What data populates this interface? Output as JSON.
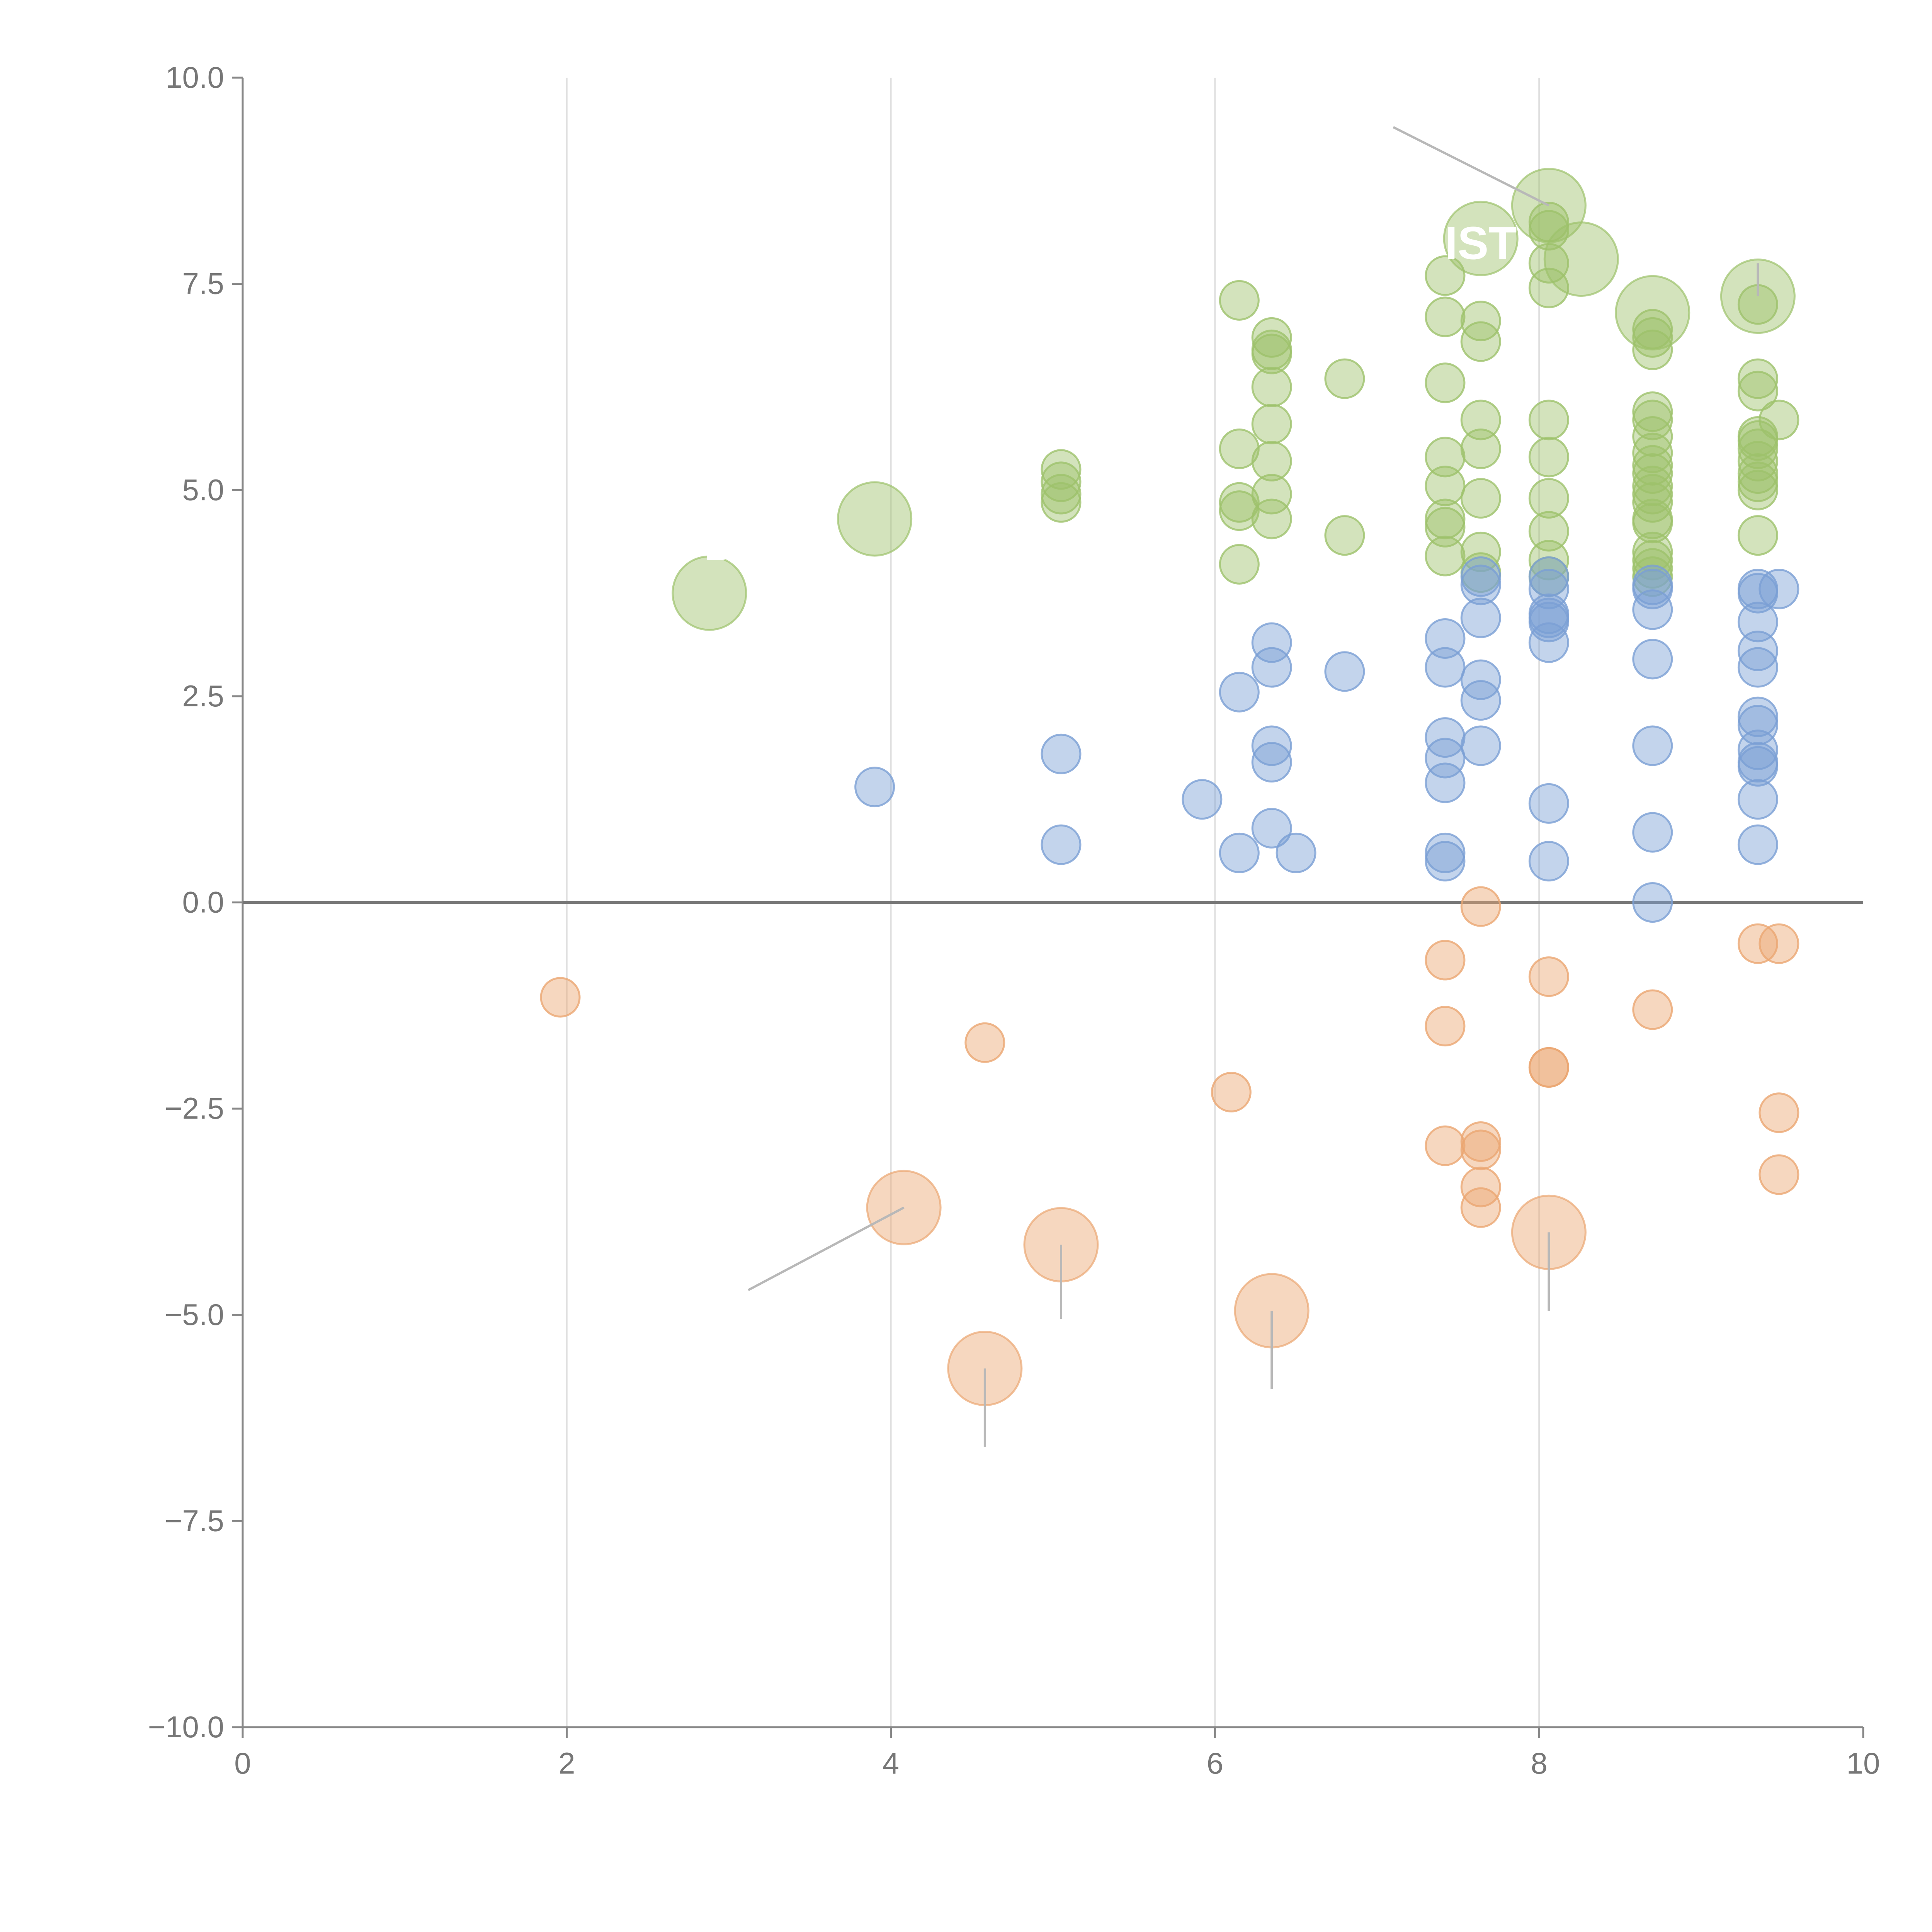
{
  "chart_data": {
    "type": "scatter",
    "title": "",
    "xlabel": "",
    "ylabel": "",
    "xlim": [
      0,
      10
    ],
    "ylim": [
      -10,
      10
    ],
    "x_ticks": [
      "0",
      "2",
      "4",
      "6",
      "8",
      "10"
    ],
    "y_ticks": [
      "−10.0",
      "−7.5",
      "−5.0",
      "−2.5",
      "0.0",
      "2.5",
      "5.0",
      "7.5",
      "10.0"
    ],
    "x_tick_values": [
      0,
      2,
      4,
      6,
      8,
      10
    ],
    "y_tick_values": [
      -10,
      -7.5,
      -5,
      -2.5,
      0,
      2.5,
      5,
      7.5,
      10
    ],
    "vertical_gridlines_at": [
      2,
      4,
      6,
      8
    ],
    "zero_line": 0,
    "series": [
      {
        "name": "green",
        "color": "#9dc26b",
        "points": [
          [
            6.15,
            7.3
          ],
          [
            6.35,
            6.85
          ],
          [
            6.35,
            6.65
          ],
          [
            6.35,
            6.7
          ],
          [
            6.35,
            6.25
          ],
          [
            6.35,
            5.8
          ],
          [
            6.35,
            5.35
          ],
          [
            6.35,
            4.95
          ],
          [
            6.35,
            4.65
          ],
          [
            6.15,
            5.5
          ],
          [
            6.15,
            4.85
          ],
          [
            6.15,
            4.75
          ],
          [
            6.15,
            4.1
          ],
          [
            6.8,
            6.35
          ],
          [
            6.8,
            4.45
          ],
          [
            5.05,
            5.25
          ],
          [
            5.05,
            5.1
          ],
          [
            5.05,
            4.95
          ],
          [
            5.05,
            4.85
          ],
          [
            7.42,
            7.6
          ],
          [
            7.42,
            7.1
          ],
          [
            7.42,
            6.3
          ],
          [
            7.42,
            5.4
          ],
          [
            7.42,
            5.05
          ],
          [
            7.42,
            4.65
          ],
          [
            7.42,
            4.55
          ],
          [
            7.42,
            4.2
          ],
          [
            7.64,
            7.05
          ],
          [
            7.64,
            6.8
          ],
          [
            7.64,
            5.85
          ],
          [
            7.64,
            5.5
          ],
          [
            7.64,
            4.9
          ],
          [
            7.64,
            4.25
          ],
          [
            7.64,
            4.0
          ],
          [
            8.06,
            8.25
          ],
          [
            8.06,
            8.15
          ],
          [
            8.06,
            7.75
          ],
          [
            8.06,
            7.45
          ],
          [
            8.06,
            5.85
          ],
          [
            8.06,
            5.4
          ],
          [
            8.06,
            4.9
          ],
          [
            8.06,
            4.5
          ],
          [
            8.06,
            4.15
          ],
          [
            8.06,
            3.95
          ],
          [
            8.7,
            6.95
          ],
          [
            8.7,
            6.85
          ],
          [
            8.7,
            6.7
          ],
          [
            8.7,
            5.95
          ],
          [
            8.7,
            5.85
          ],
          [
            8.7,
            5.65
          ],
          [
            8.7,
            5.45
          ],
          [
            8.7,
            5.3
          ],
          [
            8.7,
            5.2
          ],
          [
            8.7,
            5.05
          ],
          [
            8.7,
            4.95
          ],
          [
            8.7,
            4.85
          ],
          [
            8.7,
            4.65
          ],
          [
            8.7,
            4.6
          ],
          [
            8.7,
            4.25
          ],
          [
            8.7,
            4.15
          ],
          [
            8.7,
            4.05
          ],
          [
            8.7,
            3.95
          ],
          [
            9.35,
            7.25
          ],
          [
            9.35,
            6.35
          ],
          [
            9.35,
            6.2
          ],
          [
            9.35,
            5.65
          ],
          [
            9.35,
            5.6
          ],
          [
            9.35,
            5.5
          ],
          [
            9.35,
            5.35
          ],
          [
            9.35,
            5.2
          ],
          [
            9.35,
            5.1
          ],
          [
            9.35,
            5.0
          ],
          [
            9.35,
            4.45
          ],
          [
            9.48,
            5.85
          ]
        ],
        "large_points": [
          [
            2.88,
            3.75
          ],
          [
            3.9,
            4.65
          ],
          [
            7.64,
            8.05
          ],
          [
            8.06,
            8.45
          ],
          [
            8.26,
            7.8
          ],
          [
            8.7,
            7.15
          ],
          [
            9.35,
            7.35
          ]
        ]
      },
      {
        "name": "blue",
        "color": "#7a9fd4",
        "points": [
          [
            3.9,
            1.4
          ],
          [
            5.05,
            1.8
          ],
          [
            5.05,
            0.7
          ],
          [
            5.92,
            1.25
          ],
          [
            6.15,
            2.55
          ],
          [
            6.15,
            0.6
          ],
          [
            6.35,
            3.15
          ],
          [
            6.35,
            2.85
          ],
          [
            6.35,
            1.9
          ],
          [
            6.35,
            1.7
          ],
          [
            6.35,
            0.9
          ],
          [
            6.5,
            0.6
          ],
          [
            6.8,
            2.8
          ],
          [
            7.42,
            3.2
          ],
          [
            7.42,
            2.85
          ],
          [
            7.42,
            2.0
          ],
          [
            7.42,
            1.75
          ],
          [
            7.42,
            1.45
          ],
          [
            7.42,
            0.6
          ],
          [
            7.42,
            0.5
          ],
          [
            7.64,
            3.95
          ],
          [
            7.64,
            3.85
          ],
          [
            7.64,
            3.45
          ],
          [
            7.64,
            2.7
          ],
          [
            7.64,
            2.45
          ],
          [
            7.64,
            1.9
          ],
          [
            8.06,
            3.95
          ],
          [
            8.06,
            3.8
          ],
          [
            8.06,
            3.5
          ],
          [
            8.06,
            3.45
          ],
          [
            8.06,
            3.4
          ],
          [
            8.06,
            3.15
          ],
          [
            8.06,
            1.2
          ],
          [
            8.06,
            0.5
          ],
          [
            8.7,
            3.85
          ],
          [
            8.7,
            3.8
          ],
          [
            8.7,
            3.55
          ],
          [
            8.7,
            2.95
          ],
          [
            8.7,
            1.9
          ],
          [
            8.7,
            0.85
          ],
          [
            8.7,
            0.0
          ],
          [
            9.35,
            3.8
          ],
          [
            9.35,
            3.75
          ],
          [
            9.35,
            3.4
          ],
          [
            9.35,
            3.05
          ],
          [
            9.35,
            2.85
          ],
          [
            9.35,
            2.25
          ],
          [
            9.35,
            2.15
          ],
          [
            9.35,
            1.85
          ],
          [
            9.35,
            1.7
          ],
          [
            9.35,
            1.65
          ],
          [
            9.35,
            1.25
          ],
          [
            9.35,
            0.7
          ],
          [
            9.48,
            3.8
          ]
        ],
        "large_points": []
      },
      {
        "name": "orange",
        "color": "#eba672",
        "points": [
          [
            1.96,
            -1.15
          ],
          [
            4.58,
            -1.7
          ],
          [
            6.1,
            -2.3
          ],
          [
            7.42,
            -0.7
          ],
          [
            7.42,
            -1.5
          ],
          [
            7.42,
            -2.95
          ],
          [
            7.64,
            -0.05
          ],
          [
            7.64,
            -2.9
          ],
          [
            7.64,
            -3.0
          ],
          [
            7.64,
            -3.45
          ],
          [
            7.64,
            -3.7
          ],
          [
            8.06,
            -0.9
          ],
          [
            8.06,
            -2.0
          ],
          [
            8.06,
            -2.0
          ],
          [
            8.7,
            -1.3
          ],
          [
            9.35,
            -0.5
          ],
          [
            9.48,
            -0.5
          ],
          [
            9.48,
            -2.55
          ],
          [
            9.48,
            -3.3
          ]
        ],
        "large_points": [
          [
            4.08,
            -3.7
          ],
          [
            4.58,
            -5.65
          ],
          [
            5.05,
            -4.15
          ],
          [
            6.35,
            -4.95
          ],
          [
            8.06,
            -4.0
          ]
        ]
      }
    ],
    "annotations": [
      {
        "text": "",
        "from": [
          8.06,
          8.45
        ],
        "to": [
          7.1,
          9.4
        ]
      },
      {
        "text": "",
        "from": [
          4.08,
          -3.7
        ],
        "to": [
          3.12,
          -4.7
        ]
      },
      {
        "text": "",
        "from": [
          5.05,
          -4.15
        ],
        "to": [
          5.05,
          -5.05
        ]
      },
      {
        "text": "",
        "from": [
          6.35,
          -4.95
        ],
        "to": [
          6.35,
          -5.9
        ]
      },
      {
        "text": "",
        "from": [
          4.58,
          -5.65
        ],
        "to": [
          4.58,
          -6.6
        ]
      },
      {
        "text": "",
        "from": [
          8.06,
          -4.0
        ],
        "to": [
          8.06,
          -4.95
        ]
      },
      {
        "text": "",
        "from": [
          9.35,
          7.35
        ],
        "to": [
          9.35,
          7.75
        ]
      }
    ],
    "overlay_labels": [
      {
        "text": "IST",
        "x": 7.64,
        "y": 7.8
      },
      {
        "text": "D",
        "x": 2.95,
        "y": 4.15
      }
    ]
  }
}
